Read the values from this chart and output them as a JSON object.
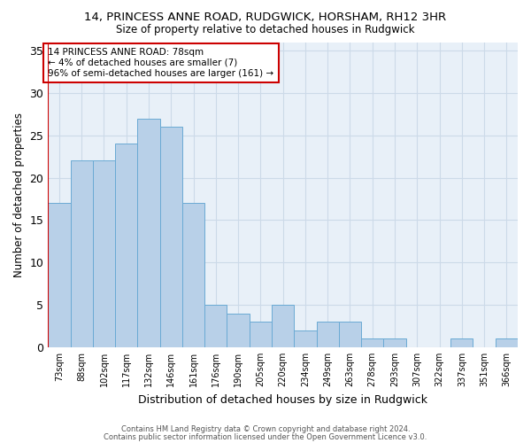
{
  "title1": "14, PRINCESS ANNE ROAD, RUDGWICK, HORSHAM, RH12 3HR",
  "title2": "Size of property relative to detached houses in Rudgwick",
  "xlabel": "Distribution of detached houses by size in Rudgwick",
  "ylabel": "Number of detached properties",
  "footnote1": "Contains HM Land Registry data © Crown copyright and database right 2024.",
  "footnote2": "Contains public sector information licensed under the Open Government Licence v3.0.",
  "annotation_line1": "14 PRINCESS ANNE ROAD: 78sqm",
  "annotation_line2": "← 4% of detached houses are smaller (7)",
  "annotation_line3": "96% of semi-detached houses are larger (161) →",
  "bar_labels": [
    "73sqm",
    "88sqm",
    "102sqm",
    "117sqm",
    "132sqm",
    "146sqm",
    "161sqm",
    "176sqm",
    "190sqm",
    "205sqm",
    "220sqm",
    "234sqm",
    "249sqm",
    "263sqm",
    "278sqm",
    "293sqm",
    "307sqm",
    "322sqm",
    "337sqm",
    "351sqm",
    "366sqm"
  ],
  "bar_values": [
    17,
    22,
    22,
    24,
    27,
    26,
    17,
    5,
    4,
    3,
    5,
    2,
    3,
    3,
    1,
    1,
    0,
    0,
    1,
    0,
    1
  ],
  "bar_color": "#b8d0e8",
  "bar_edge_color": "#6aaad4",
  "highlight_color": "#cc0000",
  "ylim": [
    0,
    36
  ],
  "yticks": [
    0,
    5,
    10,
    15,
    20,
    25,
    30,
    35
  ],
  "annotation_box_color": "#cc0000",
  "annotation_box_fill": "white",
  "grid_color": "#ccdae8",
  "bg_color": "#e8f0f8"
}
